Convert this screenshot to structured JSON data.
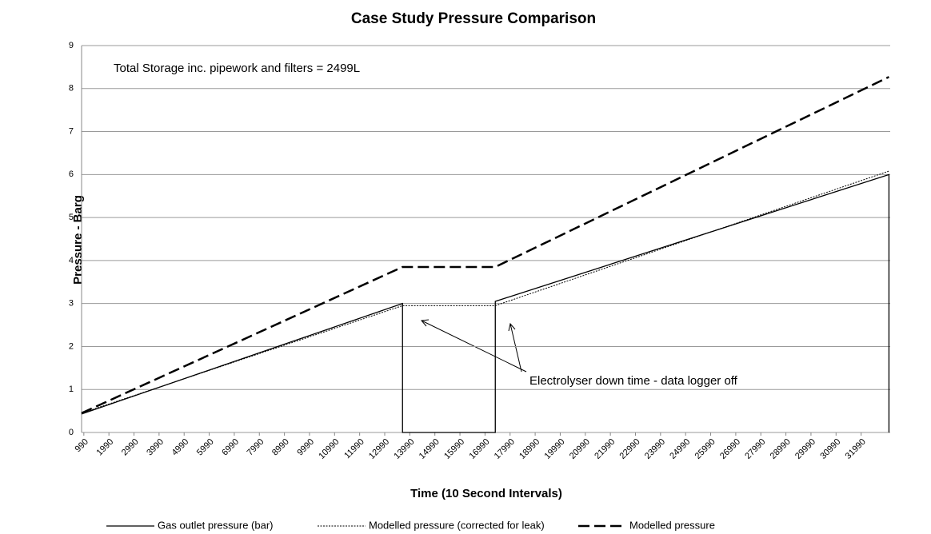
{
  "chart_data": {
    "type": "line",
    "title": "Case Study Pressure Comparison",
    "x_label": "Time (10 Second Intervals)",
    "y_label": "Pressure - Barg",
    "annotations": [
      "Total Storage inc. pipework and filters = 2499L",
      "Electrolyser down time - data logger off"
    ],
    "xlim": [
      900,
      33150
    ],
    "xticks": [
      990,
      1990,
      2990,
      3990,
      4990,
      5990,
      6990,
      7990,
      8990,
      9990,
      10990,
      11990,
      12990,
      13990,
      14990,
      15990,
      16990,
      17990,
      18990,
      19990,
      20990,
      21990,
      22990,
      23990,
      24990,
      25990,
      26990,
      27990,
      28990,
      29990,
      30990,
      31990
    ],
    "ylim": [
      0,
      9
    ],
    "yticks": [
      0,
      1,
      2,
      3,
      4,
      5,
      6,
      7,
      8,
      9
    ],
    "grid": true,
    "legend": "bottom",
    "series": [
      {
        "name": "Gas outlet pressure (bar)",
        "color": "#000000",
        "dash": "solid",
        "x": [
          900,
          13700,
          13700,
          17400,
          17400,
          33100,
          33100
        ],
        "values": [
          0.43,
          3.0,
          0,
          0,
          3.05,
          6.0,
          0
        ]
      },
      {
        "name": "Modelled pressure (corrected for leak)",
        "color": "#000000",
        "dash": "dotted",
        "x": [
          900,
          13700,
          17400,
          33100
        ],
        "values": [
          0.45,
          2.95,
          2.95,
          6.08
        ]
      },
      {
        "name": "Modelled pressure",
        "color": "#000000",
        "dash": "dashed",
        "x": [
          900,
          13700,
          17400,
          33100
        ],
        "values": [
          0.45,
          3.85,
          3.85,
          8.27
        ]
      }
    ]
  }
}
